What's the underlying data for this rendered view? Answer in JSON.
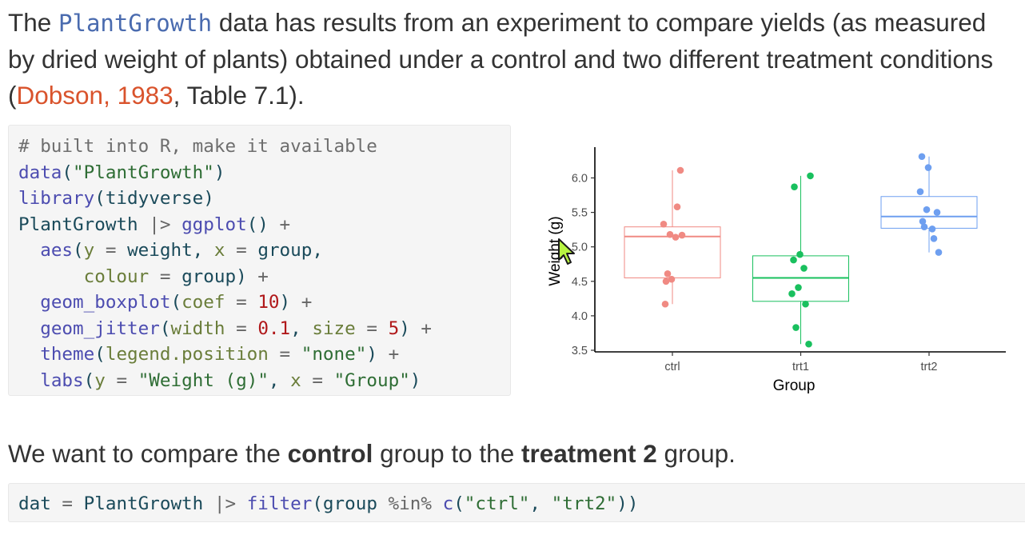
{
  "intro": {
    "text_1": "The ",
    "dataset_name": "PlantGrowth",
    "text_2": " data has results from an experiment to compare yields (as measured by dried weight of plants) obtained under a control and two different treatment conditions (",
    "citation_link": "Dobson, 1983",
    "text_3": ", Table 7.1)."
  },
  "code_block_1": {
    "lines": [
      "# built into R, make it available",
      "data(\"PlantGrowth\")",
      "library(tidyverse)",
      "PlantGrowth |> ggplot() +",
      "  aes(y = weight, x = group,",
      "      colour = group) +",
      "  geom_boxplot(coef = 10) +",
      "  geom_jitter(width = 0.1, size = 5) +",
      "  theme(legend.position = \"none\") +",
      "  labs(y = \"Weight (g)\", x = \"Group\")"
    ]
  },
  "paragraph": {
    "text_1": "We want to compare the ",
    "bold_1": "control",
    "text_2": " group to the ",
    "bold_2": "treatment 2",
    "text_3": " group."
  },
  "code_block_2": {
    "line": "dat = PlantGrowth |> filter(group %in% c(\"ctrl\", \"trt2\"))"
  },
  "chart_data": {
    "type": "boxplot+jitter",
    "xlabel": "Group",
    "ylabel": "Weight (g)",
    "categories": [
      "ctrl",
      "trt1",
      "trt2"
    ],
    "ylim": [
      3.5,
      6.4
    ],
    "yticks": [
      3.5,
      4.0,
      4.5,
      5.0,
      5.5,
      6.0
    ],
    "ytick_labels": [
      "3.5",
      "4.0",
      "4.5",
      "5.0",
      "5.5",
      "6.0"
    ],
    "legend": "none",
    "grid": false,
    "colors": {
      "ctrl": "#f08a83",
      "trt1": "#19c05e",
      "trt2": "#6e9ff0"
    },
    "groups": [
      {
        "name": "ctrl",
        "box": {
          "min": 4.17,
          "q1": 4.55,
          "median": 5.15,
          "q3": 5.29,
          "max": 6.11
        },
        "points": [
          4.17,
          5.58,
          5.18,
          6.11,
          4.5,
          4.61,
          5.17,
          4.53,
          5.33,
          5.14
        ]
      },
      {
        "name": "trt1",
        "box": {
          "min": 3.59,
          "q1": 4.21,
          "median": 4.55,
          "q3": 4.87,
          "max": 6.03
        },
        "points": [
          4.81,
          4.17,
          4.41,
          3.59,
          5.87,
          3.83,
          6.03,
          4.89,
          4.32,
          4.69
        ]
      },
      {
        "name": "trt2",
        "box": {
          "min": 4.92,
          "q1": 5.27,
          "median": 5.44,
          "q3": 5.73,
          "max": 6.31
        },
        "points": [
          6.31,
          5.12,
          5.54,
          5.5,
          5.37,
          5.29,
          4.92,
          6.15,
          5.8,
          5.26
        ]
      }
    ]
  }
}
